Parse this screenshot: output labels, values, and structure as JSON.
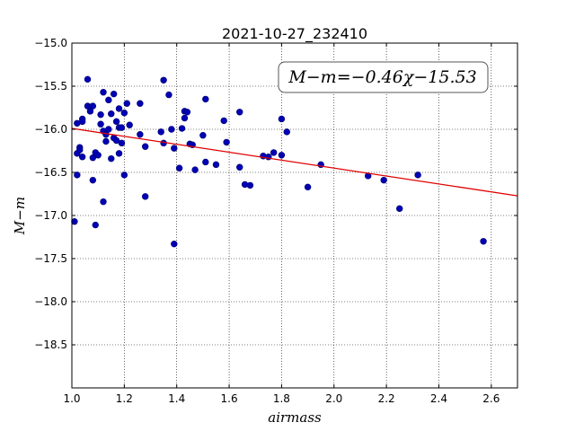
{
  "chart_data": {
    "type": "scatter",
    "title": "2021-10-27_232410",
    "xlabel": "airmass",
    "ylabel": "M−m",
    "xlim": [
      1.0,
      2.7
    ],
    "ylim": [
      -15.0,
      -19.0
    ],
    "y_inverted": true,
    "grid": true,
    "xticks": [
      1.0,
      1.2,
      1.4,
      1.6,
      1.8,
      2.0,
      2.2,
      2.4,
      2.6
    ],
    "xtick_labels": [
      "1.0",
      "1.2",
      "1.4",
      "1.6",
      "1.8",
      "2.0",
      "2.2",
      "2.4",
      "2.6"
    ],
    "yticks": [
      -15.0,
      -15.5,
      -16.0,
      -16.5,
      -17.0,
      -17.5,
      -18.0,
      -18.5
    ],
    "ytick_labels": [
      "−15.0",
      "−15.5",
      "−16.0",
      "−16.5",
      "−17.0",
      "−17.5",
      "−18.0",
      "−18.5"
    ],
    "point_color": "#0000b4",
    "fit_color": "#e00000",
    "fit_text": "M−m=−0.46χ−15.53",
    "fit": {
      "slope": -0.46,
      "intercept": -15.53
    },
    "points": [
      [
        1.01,
        -17.07
      ],
      [
        1.02,
        -16.28
      ],
      [
        1.02,
        -16.53
      ],
      [
        1.02,
        -15.93
      ],
      [
        1.03,
        -16.21
      ],
      [
        1.03,
        -16.24
      ],
      [
        1.04,
        -15.88
      ],
      [
        1.04,
        -15.91
      ],
      [
        1.04,
        -16.32
      ],
      [
        1.06,
        -15.42
      ],
      [
        1.06,
        -15.73
      ],
      [
        1.07,
        -15.74
      ],
      [
        1.07,
        -15.79
      ],
      [
        1.08,
        -15.73
      ],
      [
        1.08,
        -16.33
      ],
      [
        1.08,
        -16.59
      ],
      [
        1.09,
        -16.27
      ],
      [
        1.09,
        -17.11
      ],
      [
        1.1,
        -16.3
      ],
      [
        1.11,
        -15.94
      ],
      [
        1.11,
        -15.83
      ],
      [
        1.12,
        -16.02
      ],
      [
        1.12,
        -15.57
      ],
      [
        1.12,
        -16.84
      ],
      [
        1.13,
        -16.06
      ],
      [
        1.13,
        -16.14
      ],
      [
        1.14,
        -15.66
      ],
      [
        1.14,
        -16.0
      ],
      [
        1.15,
        -15.82
      ],
      [
        1.15,
        -16.34
      ],
      [
        1.16,
        -15.59
      ],
      [
        1.16,
        -16.1
      ],
      [
        1.17,
        -15.91
      ],
      [
        1.17,
        -16.13
      ],
      [
        1.18,
        -15.76
      ],
      [
        1.18,
        -15.98
      ],
      [
        1.18,
        -16.28
      ],
      [
        1.19,
        -16.16
      ],
      [
        1.19,
        -15.98
      ],
      [
        1.2,
        -16.53
      ],
      [
        1.2,
        -15.81
      ],
      [
        1.21,
        -15.7
      ],
      [
        1.22,
        -15.95
      ],
      [
        1.26,
        -16.06
      ],
      [
        1.26,
        -15.7
      ],
      [
        1.28,
        -16.2
      ],
      [
        1.28,
        -16.78
      ],
      [
        1.34,
        -16.03
      ],
      [
        1.35,
        -16.16
      ],
      [
        1.35,
        -15.43
      ],
      [
        1.37,
        -15.6
      ],
      [
        1.38,
        -16.0
      ],
      [
        1.39,
        -16.22
      ],
      [
        1.39,
        -17.33
      ],
      [
        1.41,
        -16.45
      ],
      [
        1.42,
        -15.99
      ],
      [
        1.43,
        -15.79
      ],
      [
        1.43,
        -15.87
      ],
      [
        1.44,
        -15.8
      ],
      [
        1.45,
        -16.17
      ],
      [
        1.46,
        -16.18
      ],
      [
        1.47,
        -16.47
      ],
      [
        1.5,
        -16.07
      ],
      [
        1.51,
        -15.65
      ],
      [
        1.51,
        -16.38
      ],
      [
        1.55,
        -16.41
      ],
      [
        1.58,
        -15.9
      ],
      [
        1.59,
        -16.15
      ],
      [
        1.64,
        -16.44
      ],
      [
        1.64,
        -15.8
      ],
      [
        1.66,
        -16.64
      ],
      [
        1.68,
        -16.65
      ],
      [
        1.73,
        -16.31
      ],
      [
        1.75,
        -16.32
      ],
      [
        1.77,
        -16.27
      ],
      [
        1.8,
        -16.3
      ],
      [
        1.8,
        -15.88
      ],
      [
        1.82,
        -16.03
      ],
      [
        1.9,
        -16.67
      ],
      [
        1.95,
        -16.41
      ],
      [
        2.13,
        -16.54
      ],
      [
        2.19,
        -16.59
      ],
      [
        2.25,
        -16.92
      ],
      [
        2.32,
        -16.53
      ],
      [
        2.57,
        -17.3
      ]
    ]
  }
}
